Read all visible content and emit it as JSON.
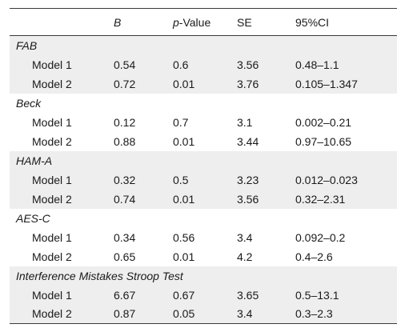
{
  "table": {
    "headers": {
      "blank": "",
      "b": "B",
      "p_italic": "p",
      "p_rest": "-Value",
      "se": "SE",
      "ci": "95%CI"
    },
    "groups": [
      {
        "label": "FAB",
        "rows": [
          {
            "model": "Model 1",
            "b": "0.54",
            "p": "0.6",
            "se": "3.56",
            "ci": "0.48–1.1"
          },
          {
            "model": "Model 2",
            "b": "0.72",
            "p": "0.01",
            "se": "3.76",
            "ci": "0.105–1.347"
          }
        ]
      },
      {
        "label": "Beck",
        "rows": [
          {
            "model": "Model 1",
            "b": "0.12",
            "p": "0.7",
            "se": "3.1",
            "ci": "0.002–0.21"
          },
          {
            "model": "Model 2",
            "b": "0.88",
            "p": "0.01",
            "se": "3.44",
            "ci": "0.97–10.65"
          }
        ]
      },
      {
        "label": "HAM-A",
        "rows": [
          {
            "model": "Model 1",
            "b": "0.32",
            "p": "0.5",
            "se": "3.23",
            "ci": "0.012–0.023"
          },
          {
            "model": "Model 2",
            "b": "0.74",
            "p": "0.01",
            "se": "3.56",
            "ci": "0.32–2.31"
          }
        ]
      },
      {
        "label": "AES-C",
        "rows": [
          {
            "model": "Model 1",
            "b": "0.34",
            "p": "0.56",
            "se": "3.4",
            "ci": "0.092–0.2"
          },
          {
            "model": "Model 2",
            "b": "0.65",
            "p": "0.01",
            "se": "4.2",
            "ci": "0.4–2.6"
          }
        ]
      },
      {
        "label": "Interference Mistakes Stroop Test",
        "rows": [
          {
            "model": "Model 1",
            "b": "6.67",
            "p": "0.67",
            "se": "3.65",
            "ci": "0.5–13.1"
          },
          {
            "model": "Model 2",
            "b": "0.87",
            "p": "0.05",
            "se": "3.4",
            "ci": "0.3–2.3"
          }
        ]
      }
    ]
  }
}
